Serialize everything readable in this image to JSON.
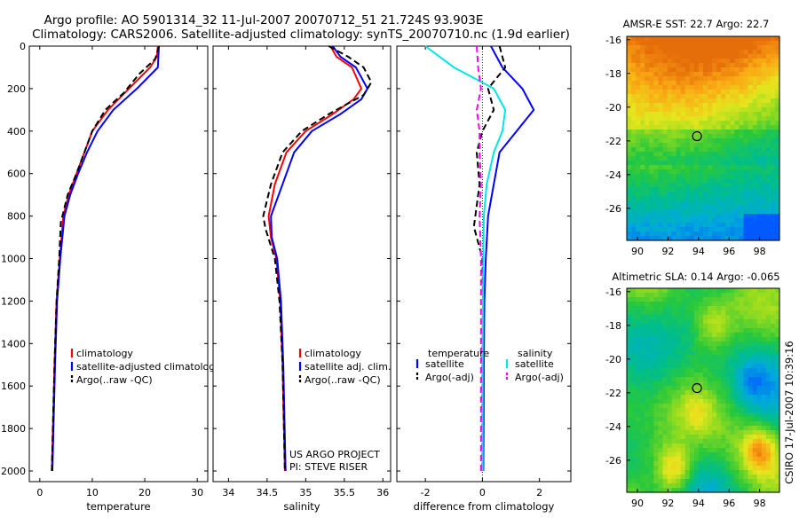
{
  "header": {
    "title_line1": "Argo profile: AO 5901314_32 11-Jul-2007 20070712_51 21.724S 93.903E",
    "title_line2": "Climatology: CARS2006. Satellite-adjusted climatology: synTS_20070710.nc (1.9d earlier)"
  },
  "footer": {
    "project_line1": "US ARGO PROJECT",
    "project_line2": "PI: STEVE RISER",
    "stamp": "CSIRO 17-Jul-2007 10:39:16"
  },
  "colors": {
    "climatology": "#ff0000",
    "satellite": "#0000ff",
    "argo": "#000000",
    "satellite_salinity": "#00e5e5",
    "argo_salinity": "#ff00ff"
  },
  "chart_data": [
    {
      "id": "temperature",
      "type": "line",
      "xlabel": "temperature",
      "xlim": [
        -2,
        32
      ],
      "xticks": [
        0,
        10,
        20,
        30
      ],
      "ylim": [
        2050,
        0
      ],
      "yticks": [
        0,
        200,
        400,
        600,
        800,
        1000,
        1200,
        1400,
        1600,
        1800,
        2000
      ],
      "legend_position": "bottom-right",
      "series": [
        {
          "name": "climatology",
          "color": "#ff0000",
          "dash": "solid",
          "x": [
            22.5,
            22.3,
            21.0,
            17.0,
            13.0,
            10.0,
            8.5,
            7.0,
            5.5,
            4.5,
            3.8,
            3.2,
            2.8,
            2.5,
            2.3
          ],
          "y": [
            0,
            50,
            100,
            200,
            300,
            400,
            500,
            600,
            700,
            800,
            1000,
            1200,
            1500,
            1800,
            2000
          ]
        },
        {
          "name": "satellite-adjusted climatology",
          "color": "#0000ff",
          "dash": "solid",
          "x": [
            22.7,
            22.6,
            22.5,
            18.5,
            14.0,
            11.0,
            9.0,
            7.3,
            5.8,
            4.7,
            3.9,
            3.3,
            2.9,
            2.6,
            2.4
          ],
          "y": [
            0,
            50,
            100,
            200,
            300,
            400,
            500,
            600,
            700,
            800,
            1000,
            1200,
            1500,
            1800,
            2000
          ]
        },
        {
          "name": "Argo(..raw -QC)",
          "color": "#000000",
          "dash": "dashed",
          "x": [
            22.7,
            22.0,
            19.0,
            16.0,
            12.5,
            10.0,
            8.5,
            7.0,
            5.3,
            4.0,
            3.7,
            3.2,
            2.8,
            2.5,
            2.3
          ],
          "y": [
            0,
            60,
            130,
            220,
            300,
            400,
            500,
            600,
            700,
            830,
            1000,
            1200,
            1500,
            1800,
            2000
          ]
        }
      ],
      "legend": [
        "climatology",
        "satellite-adjusted climatolog",
        "Argo(..raw -QC)"
      ]
    },
    {
      "id": "salinity",
      "type": "line",
      "xlabel": "salinity",
      "xlim": [
        33.8,
        36.1
      ],
      "xticks": [
        34,
        34.5,
        35,
        35.5,
        36
      ],
      "ylim": [
        2050,
        0
      ],
      "yticks": [
        0,
        200,
        400,
        600,
        800,
        1000,
        1200,
        1400,
        1600,
        1800,
        2000
      ],
      "legend_position": "bottom-right",
      "series": [
        {
          "name": "climatology",
          "color": "#ff0000",
          "dash": "solid",
          "x": [
            35.32,
            35.4,
            35.6,
            35.72,
            35.62,
            35.35,
            35.0,
            34.75,
            34.6,
            34.52,
            34.55,
            34.62,
            34.67,
            34.7,
            34.73
          ],
          "y": [
            0,
            50,
            100,
            200,
            250,
            320,
            400,
            500,
            650,
            800,
            900,
            1000,
            1200,
            1500,
            2000
          ]
        },
        {
          "name": "satellite adj. clim.",
          "color": "#0000ff",
          "dash": "solid",
          "x": [
            35.35,
            35.45,
            35.65,
            35.8,
            35.72,
            35.45,
            35.08,
            34.85,
            34.7,
            34.55,
            34.56,
            34.63,
            34.68,
            34.71,
            34.74
          ],
          "y": [
            0,
            50,
            100,
            200,
            250,
            320,
            400,
            500,
            650,
            800,
            900,
            1000,
            1200,
            1500,
            2000
          ]
        },
        {
          "name": "Argo(..raw -QC)",
          "color": "#000000",
          "dash": "dashed",
          "x": [
            35.3,
            35.55,
            35.75,
            35.85,
            35.75,
            35.3,
            34.95,
            34.7,
            34.55,
            34.45,
            34.48,
            34.6,
            34.66,
            34.7,
            34.73
          ],
          "y": [
            0,
            50,
            100,
            170,
            230,
            320,
            400,
            500,
            650,
            800,
            860,
            1000,
            1200,
            1500,
            2000
          ]
        }
      ],
      "legend": [
        "climatology",
        "satellite adj. clim.",
        "Argo(..raw -QC)"
      ]
    },
    {
      "id": "difference",
      "type": "line",
      "xlabel": "difference from climatology",
      "xlim": [
        -3,
        3.1
      ],
      "xticks": [
        -2,
        0,
        2
      ],
      "ylim": [
        2050,
        0
      ],
      "yticks": [
        0,
        200,
        400,
        600,
        800,
        1000,
        1200,
        1400,
        1600,
        1800,
        2000
      ],
      "legend_position": "bottom",
      "series": [
        {
          "name": "satellite",
          "group": "temperature",
          "color": "#0000ff",
          "dash": "solid",
          "x": [
            0.3,
            0.7,
            1.4,
            1.8,
            1.2,
            0.6,
            0.4,
            0.2,
            0.12,
            0.07,
            0.05,
            0.04,
            0.03
          ],
          "y": [
            0,
            100,
            200,
            300,
            400,
            500,
            650,
            800,
            1000,
            1200,
            1500,
            1800,
            2000
          ]
        },
        {
          "name": "Argo(-adj)",
          "group": "temperature",
          "color": "#000000",
          "dash": "dashed",
          "x": [
            0.6,
            0.8,
            0.2,
            0.4,
            0.0,
            -0.2,
            -0.1,
            -0.3,
            0.0,
            0.02,
            0.0,
            0.0,
            0.0
          ],
          "y": [
            0,
            100,
            200,
            300,
            400,
            500,
            650,
            850,
            1000,
            1200,
            1500,
            1800,
            2000
          ]
        },
        {
          "name": "satellite",
          "group": "salinity",
          "color": "#00e5e5",
          "dash": "solid",
          "x": [
            -2.0,
            -1.0,
            0.4,
            0.8,
            0.7,
            0.4,
            0.15,
            0.05,
            0.03,
            0.02,
            0.01,
            0.01,
            0.01
          ],
          "y": [
            0,
            100,
            200,
            300,
            400,
            500,
            650,
            800,
            1000,
            1200,
            1500,
            1800,
            2000
          ]
        },
        {
          "name": "Argo(-adj)",
          "group": "salinity",
          "color": "#ff00ff",
          "dash": "dashed",
          "x": [
            -0.2,
            -0.15,
            -0.05,
            -0.2,
            -0.1,
            -0.1,
            -0.05,
            -0.1,
            -0.05,
            -0.05,
            -0.05,
            -0.05,
            -0.05
          ],
          "y": [
            0,
            100,
            200,
            300,
            400,
            500,
            650,
            800,
            1000,
            1200,
            1500,
            1800,
            2000
          ]
        }
      ],
      "legend_groups": [
        "temperature",
        "salinity"
      ],
      "legend": [
        "satellite",
        "Argo(-adj)"
      ]
    }
  ],
  "maps": [
    {
      "id": "sst",
      "type": "heatmap",
      "title": "AMSR-E SST: 22.7  Argo: 22.7",
      "xlim": [
        89.3,
        99.3
      ],
      "ylim": [
        -27.9,
        -15.8
      ],
      "xticks": [
        90,
        92,
        94,
        96,
        98
      ],
      "yticks": [
        -16,
        -18,
        -20,
        -22,
        -24,
        -26
      ],
      "marker": {
        "lon": 93.9,
        "lat": -21.72
      }
    },
    {
      "id": "sla",
      "type": "heatmap",
      "title": "Altimetric SLA: 0.14  Argo: -0.065",
      "xlim": [
        89.3,
        99.3
      ],
      "ylim": [
        -27.9,
        -15.8
      ],
      "xticks": [
        90,
        92,
        94,
        96,
        98
      ],
      "yticks": [
        -16,
        -18,
        -20,
        -22,
        -24,
        -26
      ],
      "marker": {
        "lon": 93.9,
        "lat": -21.72
      }
    }
  ]
}
